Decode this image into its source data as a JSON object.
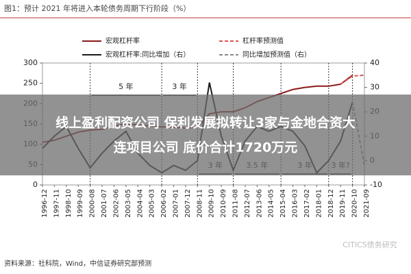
{
  "chart_data": {
    "type": "line",
    "title": "图1：预计 2021 年将进入本轮债务周期下行阶段（%）",
    "categories": [
      "1996-12",
      "1997-11",
      "1998-10",
      "1999-09",
      "2000-08",
      "2001-07",
      "2002-06",
      "2003-05",
      "2004-04",
      "2005-03",
      "2006-02",
      "2007-01",
      "2007-12",
      "2008-11",
      "2009-10",
      "2010-09",
      "2011-08",
      "2012-07",
      "2013-06",
      "2014-05",
      "2015-04",
      "2016-03",
      "2017-02",
      "2018-01",
      "2018-12",
      "2019-11",
      "2020-10",
      "2021-09"
    ],
    "series": [
      {
        "name": "宏观杠杆率",
        "color": "#8b1a1a",
        "dash": false,
        "values": [
          105,
          110,
          120,
          130,
          135,
          137,
          145,
          150,
          148,
          145,
          143,
          142,
          140,
          142,
          175,
          180,
          180,
          190,
          205,
          215,
          225,
          235,
          240,
          243,
          243,
          248,
          270,
          null
        ]
      },
      {
        "name": "杠杆率预测值",
        "color": "#d9534f",
        "dash": true,
        "values": [
          null,
          null,
          null,
          null,
          null,
          null,
          null,
          null,
          null,
          null,
          null,
          null,
          null,
          null,
          null,
          null,
          null,
          null,
          null,
          null,
          null,
          null,
          null,
          null,
          null,
          248,
          268,
          270
        ]
      },
      {
        "name": "宏观杠杆率:同比增加（右）",
        "color": "#1a1a1a",
        "dash": false,
        "axis": "y2",
        "values": [
          5,
          10,
          14,
          5,
          -3,
          3,
          8,
          12,
          3,
          -2,
          -5,
          -2,
          -4,
          0,
          32,
          10,
          -4,
          8,
          14,
          12,
          14,
          12,
          6,
          -5,
          0,
          8,
          24,
          null
        ]
      },
      {
        "name": "同比增加预测值（右）",
        "color": "#888888",
        "dash": true,
        "axis": "y2",
        "values": [
          null,
          null,
          null,
          null,
          null,
          null,
          null,
          null,
          null,
          null,
          null,
          null,
          null,
          null,
          null,
          null,
          null,
          null,
          null,
          null,
          null,
          null,
          null,
          null,
          null,
          null,
          24,
          -2
        ]
      }
    ],
    "ylim": [
      0,
      300
    ],
    "yticks": [
      0,
      50,
      100,
      150,
      200,
      250,
      300
    ],
    "y2lim": [
      -10,
      40
    ],
    "y2ticks": [
      -10,
      0,
      10,
      20,
      30,
      40
    ],
    "annotations": [
      "5 年",
      "3 年",
      "3 年",
      "3.5 年",
      "3 年",
      "3 年?"
    ],
    "source": "资料来源：社科院，Wind，中信证券研究部预测",
    "watermark": "CITICS债务研究",
    "banner": [
      "线上盈利配资公司 保利发展拟转让3家与金地合资大",
      "连项目公司 底价合计1720万元"
    ]
  }
}
